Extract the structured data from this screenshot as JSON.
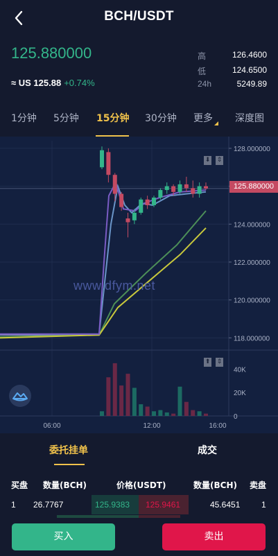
{
  "header": {
    "title": "BCH/USDT"
  },
  "ticker": {
    "last_price": "125.880000",
    "usd_prefix": "≈ US 125.88",
    "change": "+0.74%",
    "high_label": "高",
    "high": "126.4600",
    "low_label": "低",
    "low": "124.6500",
    "vol_label": "24h",
    "vol": "5249.89"
  },
  "tabs": [
    {
      "label": "1分钟"
    },
    {
      "label": "5分钟"
    },
    {
      "label": "15分钟"
    },
    {
      "label": "30分钟"
    },
    {
      "label": "更多"
    },
    {
      "label": "深度图"
    }
  ],
  "chart": {
    "watermark": "www.dfym.net",
    "last_price_tag": "125.880000",
    "price_ticks": [
      "128.000000",
      "126.000000",
      "124.000000",
      "122.000000",
      "120.000000",
      "118.000000"
    ],
    "volume_ticks": [
      "40K",
      "20K",
      "0"
    ],
    "time_ticks": [
      "06:00",
      "12:00",
      "16:00"
    ],
    "colors": {
      "up": "#33b58a",
      "down": "#c44a62",
      "ma_purple": "#7a5cc4",
      "ma_blue": "#6a95c8",
      "ma_green": "#4d8f58",
      "ma_yellow": "#c8c83c"
    }
  },
  "chart_data": {
    "type": "candlestick",
    "x_labels": [
      "06:00",
      "12:00",
      "16:00"
    ],
    "ylim": [
      117.5,
      128.4
    ],
    "last_price": 125.88,
    "candles": [
      {
        "o": 118.2,
        "h": 118.25,
        "l": 118.1,
        "c": 118.15
      },
      {
        "o": 127.0,
        "h": 128.1,
        "l": 126.9,
        "c": 127.9
      },
      {
        "o": 127.8,
        "h": 128.0,
        "l": 126.2,
        "c": 126.6
      },
      {
        "o": 126.6,
        "h": 126.7,
        "l": 125.2,
        "c": 125.6
      },
      {
        "o": 125.6,
        "h": 125.7,
        "l": 124.7,
        "c": 124.9
      },
      {
        "o": 124.3,
        "h": 124.6,
        "l": 123.3,
        "c": 124.1
      },
      {
        "o": 124.2,
        "h": 124.8,
        "l": 124.0,
        "c": 124.6
      },
      {
        "o": 124.6,
        "h": 125.4,
        "l": 124.5,
        "c": 125.3
      },
      {
        "o": 125.3,
        "h": 125.5,
        "l": 124.8,
        "c": 125.0
      },
      {
        "o": 125.0,
        "h": 125.5,
        "l": 124.9,
        "c": 125.4
      },
      {
        "o": 125.4,
        "h": 125.9,
        "l": 125.3,
        "c": 125.8
      },
      {
        "o": 125.8,
        "h": 126.2,
        "l": 125.6,
        "c": 126.0
      },
      {
        "o": 126.0,
        "h": 126.1,
        "l": 125.5,
        "c": 125.7
      },
      {
        "o": 125.7,
        "h": 126.3,
        "l": 125.6,
        "c": 126.1
      },
      {
        "o": 126.1,
        "h": 126.5,
        "l": 125.7,
        "c": 125.9
      },
      {
        "o": 125.9,
        "h": 126.3,
        "l": 125.4,
        "c": 125.6
      },
      {
        "o": 125.6,
        "h": 126.2,
        "l": 125.4,
        "c": 126.0
      },
      {
        "o": 126.0,
        "h": 126.2,
        "l": 125.8,
        "c": 125.88
      }
    ],
    "volume": [
      0,
      4000,
      33000,
      45000,
      26000,
      36000,
      24000,
      10000,
      8000,
      4000,
      5000,
      3000,
      2000,
      25000,
      12000,
      5000,
      4000,
      2000
    ],
    "volume_ylim": [
      0,
      55000
    ]
  },
  "orders": {
    "tab_orders": "委托挂单",
    "tab_trades": "成交",
    "headers": {
      "buy": "买盘",
      "amount_left": "数量(BCH)",
      "price": "价格(USDT)",
      "amount_right": "数量(BCH)",
      "sell": "卖盘"
    },
    "row": {
      "buy_index": "1",
      "buy_amount": "26.7767",
      "buy_price": "125.9383",
      "sell_price": "125.9461",
      "sell_amount": "45.6451",
      "sell_index": "1"
    }
  },
  "actions": {
    "buy": "买入",
    "sell": "卖出"
  }
}
